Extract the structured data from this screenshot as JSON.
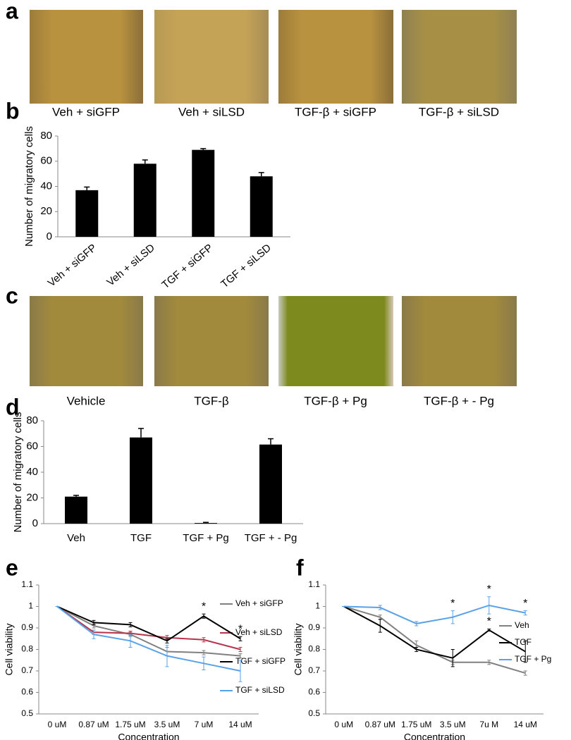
{
  "image_rows": [
    {
      "letter": "a",
      "captions": [
        "Veh + siGFP",
        "Veh + siLSD",
        "TGF-β + siGFP",
        "TGF-β + siLSD"
      ]
    },
    {
      "letter": "c",
      "captions": [
        "Vehicle",
        "TGF-β",
        "TGF-β + Pg",
        "TGF-β + - Pg"
      ]
    }
  ],
  "chart_data": [
    {
      "type": "bar",
      "letter": "b",
      "ylabel": "Number of migratory cells",
      "categories": [
        "Veh + siGFP",
        "Veh + siLSD",
        "TGF + siGFP",
        "TGF + siLSD"
      ],
      "values": [
        37,
        58,
        69,
        48
      ],
      "errors": [
        2.5,
        3,
        1,
        3
      ],
      "color": "#000000",
      "ylim": [
        0,
        80
      ],
      "yticks": [
        0,
        20,
        40,
        60,
        80
      ]
    },
    {
      "type": "bar",
      "letter": "d",
      "ylabel": "Number of migratory cells",
      "categories": [
        "Veh",
        "TGF",
        "TGF + Pg",
        "TGF + - Pg"
      ],
      "values": [
        21,
        67,
        0.5,
        61.5
      ],
      "errors": [
        1,
        7,
        0.5,
        4.5
      ],
      "color": "#000000",
      "ylim": [
        0,
        80
      ],
      "yticks": [
        0,
        20,
        40,
        60,
        80
      ]
    },
    {
      "type": "line",
      "letter": "e",
      "xlabel": "Concentration",
      "ylabel": "Cell viability",
      "categories": [
        "0 uM",
        "0.87 uM",
        "1.75 uM",
        "3.5 uM",
        "7 uM",
        "14 uM"
      ],
      "series": [
        {
          "name": "Veh + siGFP",
          "color": "#808080",
          "values": [
            1,
            0.91,
            0.87,
            0.79,
            0.785,
            0.77
          ],
          "errors": [
            0,
            0.01,
            0.01,
            0.02,
            0.01,
            0.01
          ],
          "significance": [
            null,
            null,
            null,
            null,
            null,
            null
          ]
        },
        {
          "name": "Veh + siLSD",
          "color": "#b7344c",
          "values": [
            1,
            0.88,
            0.875,
            0.855,
            0.845,
            0.8
          ],
          "errors": [
            0,
            0.01,
            0.01,
            0.01,
            0.01,
            0.01
          ],
          "significance": [
            null,
            null,
            null,
            null,
            null,
            null
          ]
        },
        {
          "name": "TGF + siGFP",
          "color": "#000000",
          "values": [
            1,
            0.925,
            0.915,
            0.84,
            0.955,
            0.85
          ],
          "errors": [
            0,
            0.01,
            0.01,
            0.01,
            0.01,
            0.01
          ],
          "significance": [
            null,
            null,
            null,
            null,
            "*",
            "*"
          ]
        },
        {
          "name": "TGF + siLSD",
          "color": "#5aa2e8",
          "values": [
            1,
            0.87,
            0.84,
            0.77,
            0.735,
            0.7
          ],
          "errors": [
            0,
            0.02,
            0.03,
            0.05,
            0.03,
            0.05
          ],
          "significance": [
            null,
            null,
            null,
            null,
            null,
            null
          ]
        }
      ],
      "ylim": [
        0.5,
        1.1
      ],
      "yticks": [
        0.5,
        0.6,
        0.7,
        0.8,
        0.9,
        1,
        1.1
      ],
      "legend": "right"
    },
    {
      "type": "line",
      "letter": "f",
      "xlabel": "Concentration",
      "ylabel": "Cell viability",
      "categories": [
        "0 uM",
        "0.87 uM",
        "1.75 uM",
        "3.5 uM",
        "7u M",
        "14 uM"
      ],
      "series": [
        {
          "name": "Veh",
          "color": "#808080",
          "values": [
            1,
            0.95,
            0.82,
            0.74,
            0.74,
            0.69
          ],
          "errors": [
            0,
            0.01,
            0.02,
            0.01,
            0.01,
            0.01
          ],
          "significance": [
            null,
            null,
            null,
            null,
            null,
            null
          ]
        },
        {
          "name": "TGF",
          "color": "#000000",
          "values": [
            1,
            0.91,
            0.8,
            0.76,
            0.89,
            0.79
          ],
          "errors": [
            0,
            0.03,
            0.01,
            0.04,
            0.005,
            0.05
          ],
          "significance": [
            null,
            null,
            null,
            null,
            "*",
            null
          ]
        },
        {
          "name": "TGF + Pg",
          "color": "#5aa2e8",
          "values": [
            1,
            0.995,
            0.92,
            0.95,
            1.005,
            0.97
          ],
          "errors": [
            0,
            0.01,
            0.01,
            0.03,
            0.04,
            0.01
          ],
          "significance": [
            null,
            null,
            null,
            "*",
            "*",
            "*"
          ]
        }
      ],
      "ylim": [
        0.5,
        1.1
      ],
      "yticks": [
        0.5,
        0.6,
        0.7,
        0.8,
        0.9,
        1,
        1.1
      ],
      "legend": "right"
    }
  ]
}
